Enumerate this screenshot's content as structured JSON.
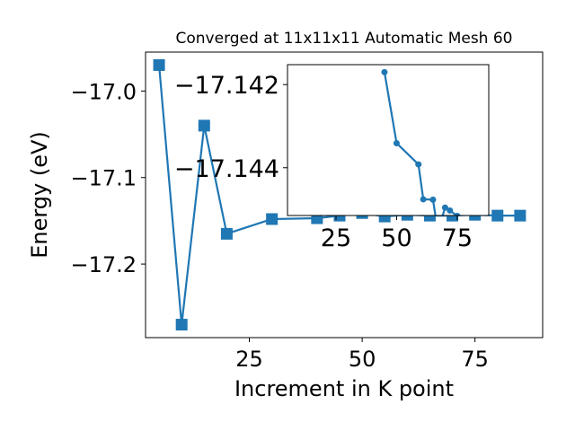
{
  "chart_data": [
    {
      "type": "line",
      "title": "Converged at 11x11x11 Automatic Mesh 60",
      "xlabel": "Increment in K point",
      "ylabel": "Energy (eV)",
      "xlim": [
        2,
        90
      ],
      "ylim": [
        -17.285,
        -16.955
      ],
      "x_ticks": [
        25,
        50,
        75
      ],
      "y_ticks": [
        -17.0,
        -17.1,
        -17.2
      ],
      "x_tick_labels": [
        "25",
        "50",
        "75"
      ],
      "y_tick_labels": [
        "−17.0",
        "−17.1",
        "−17.2"
      ],
      "grid": false,
      "marker": "square",
      "color": "#1f77b4",
      "series": [
        {
          "x": [
            5,
            10,
            15,
            20,
            30,
            40,
            45,
            50,
            55,
            60,
            65,
            70,
            75,
            80,
            85
          ],
          "y": [
            -16.97,
            -17.27,
            -17.04,
            -17.165,
            -17.148,
            -17.147,
            -17.144,
            -17.141,
            -17.145,
            -17.143,
            -17.144,
            -17.144,
            -17.143,
            -17.144,
            -17.144
          ]
        }
      ]
    },
    {
      "type": "line",
      "title": "",
      "xlabel": "",
      "ylabel": "",
      "xlim": [
        5,
        88
      ],
      "ylim": [
        -17.14515,
        -17.14152
      ],
      "x_ticks": [
        25,
        50,
        75
      ],
      "y_ticks": [
        -17.144,
        -17.142
      ],
      "x_tick_labels": [
        "25",
        "50",
        "75"
      ],
      "y_tick_labels": [
        "−17.144",
        "−17.142"
      ],
      "grid": false,
      "marker": "circle",
      "color": "#1f77b4",
      "series": [
        {
          "x": [
            45,
            50,
            59,
            61,
            65,
            67,
            70,
            72,
            75
          ],
          "y": [
            -17.1417,
            -17.14341,
            -17.14392,
            -17.14476,
            -17.14477,
            -17.14553,
            -17.14496,
            -17.14503,
            -17.14516
          ]
        }
      ]
    }
  ]
}
